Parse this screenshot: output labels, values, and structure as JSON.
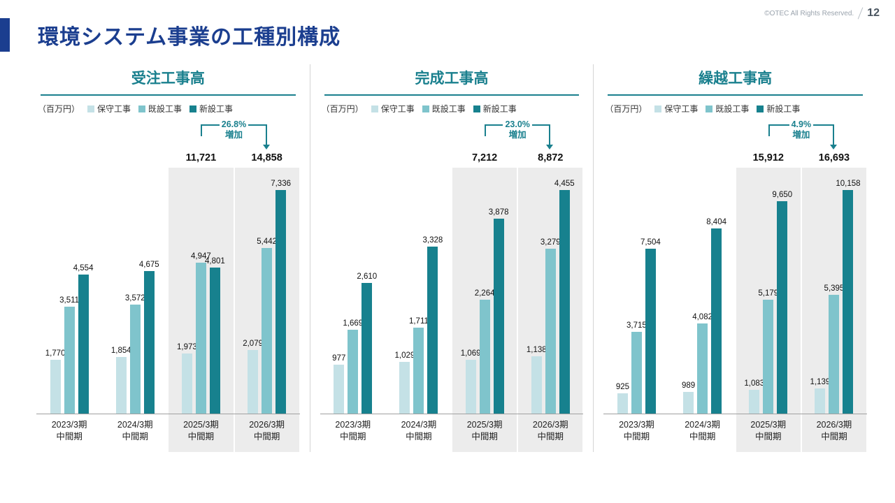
{
  "page": {
    "copyright": "©OTEC All Rights Reserved.",
    "page_number": "12",
    "title": "環境システム事業の工種別構成"
  },
  "colors": {
    "title_blue": "#1b3e8f",
    "teal": "#1a808e",
    "bar_maintenance": "#c4e1e6",
    "bar_existing": "#7fc4cc",
    "bar_new": "#17818e",
    "highlight_bg": "#ececec"
  },
  "chart_data": [
    {
      "type": "bar",
      "title": "受注工事高",
      "unit": "（百万円）",
      "legend": [
        "保守工事",
        "既設工事",
        "新設工事"
      ],
      "categories": [
        [
          "2023/3期",
          "中間期"
        ],
        [
          "2024/3期",
          "中間期"
        ],
        [
          "2025/3期",
          "中間期"
        ],
        [
          "2026/3期",
          "中間期"
        ]
      ],
      "series": [
        {
          "name": "保守工事",
          "values": [
            1770,
            1854,
            1973,
            2079
          ]
        },
        {
          "name": "既設工事",
          "values": [
            3511,
            3572,
            4947,
            5442
          ]
        },
        {
          "name": "新設工事",
          "values": [
            4554,
            4675,
            4801,
            7336
          ]
        }
      ],
      "highlighted_categories": [
        2,
        3
      ],
      "totals": [
        11721,
        14858
      ],
      "increase": {
        "percent": "26.8%",
        "label": "増加"
      },
      "ylim": [
        0,
        7336
      ],
      "grid": false,
      "legend_position": "top"
    },
    {
      "type": "bar",
      "title": "完成工事高",
      "unit": "（百万円）",
      "legend": [
        "保守工事",
        "既設工事",
        "新設工事"
      ],
      "categories": [
        [
          "2023/3期",
          "中間期"
        ],
        [
          "2024/3期",
          "中間期"
        ],
        [
          "2025/3期",
          "中間期"
        ],
        [
          "2026/3期",
          "中間期"
        ]
      ],
      "series": [
        {
          "name": "保守工事",
          "values": [
            977,
            1029,
            1069,
            1138
          ]
        },
        {
          "name": "既設工事",
          "values": [
            1669,
            1711,
            2264,
            3279
          ]
        },
        {
          "name": "新設工事",
          "values": [
            2610,
            3328,
            3878,
            4455
          ]
        }
      ],
      "highlighted_categories": [
        2,
        3
      ],
      "totals": [
        7212,
        8872
      ],
      "increase": {
        "percent": "23.0%",
        "label": "増加"
      },
      "ylim": [
        0,
        4455
      ],
      "grid": false,
      "legend_position": "top"
    },
    {
      "type": "bar",
      "title": "繰越工事高",
      "unit": "（百万円）",
      "legend": [
        "保守工事",
        "既設工事",
        "新設工事"
      ],
      "categories": [
        [
          "2023/3期",
          "中間期"
        ],
        [
          "2024/3期",
          "中間期"
        ],
        [
          "2025/3期",
          "中間期"
        ],
        [
          "2026/3期",
          "中間期"
        ]
      ],
      "series": [
        {
          "name": "保守工事",
          "values": [
            925,
            989,
            1083,
            1139
          ]
        },
        {
          "name": "既設工事",
          "values": [
            3715,
            4082,
            5179,
            5395
          ]
        },
        {
          "name": "新設工事",
          "values": [
            7504,
            8404,
            9650,
            10158
          ]
        }
      ],
      "highlighted_categories": [
        2,
        3
      ],
      "totals": [
        15912,
        16693
      ],
      "increase": {
        "percent": "4.9%",
        "label": "増加"
      },
      "ylim": [
        0,
        10158
      ],
      "grid": false,
      "legend_position": "top"
    }
  ]
}
